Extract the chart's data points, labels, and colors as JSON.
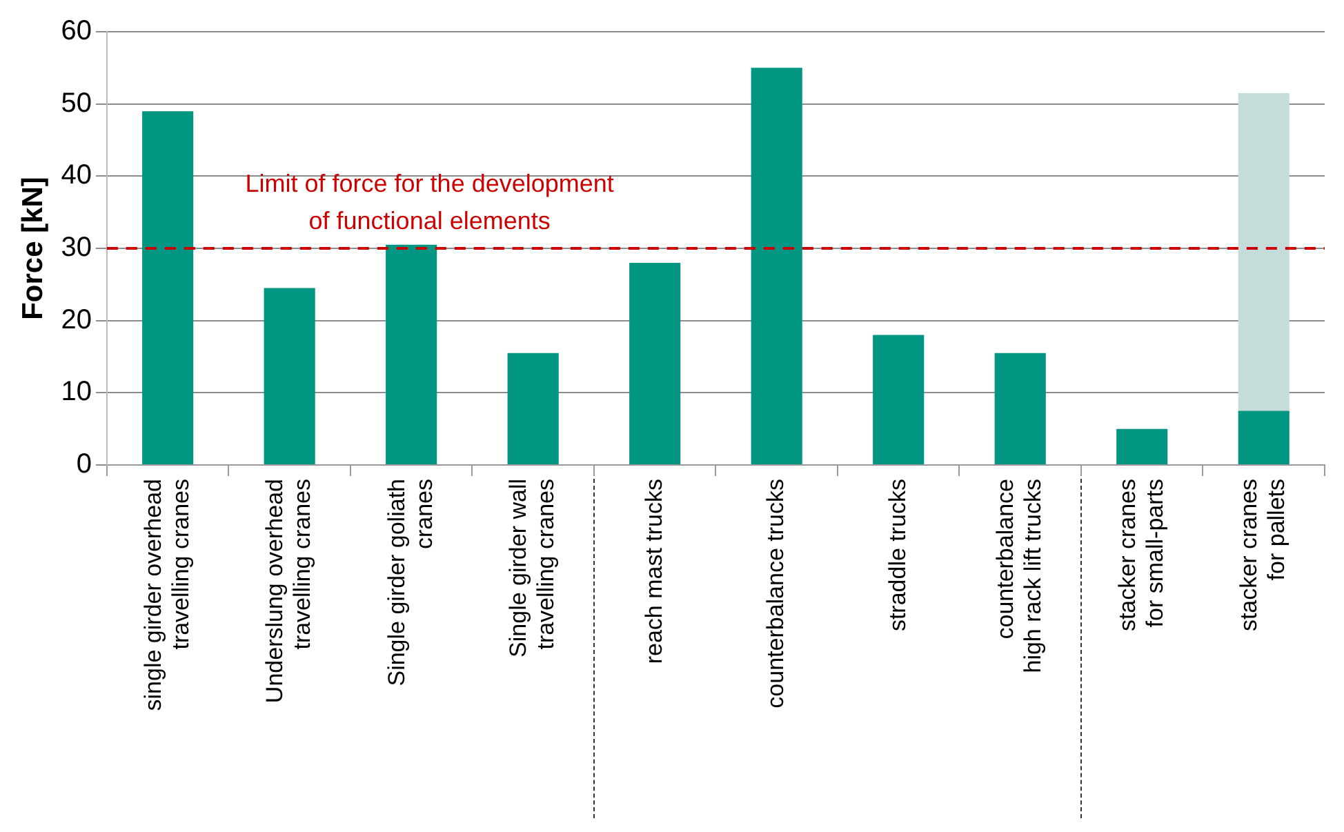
{
  "chart_data": {
    "type": "bar",
    "ylabel": "Force [kN]",
    "categories": [
      "single girder overhead\ntravelling cranes",
      "Underslung overhead\ntravelling cranes",
      "Single girder goliath\ncranes",
      "Single girder wall\ntravelling cranes",
      "reach mast trucks",
      "counterbalance trucks",
      "straddle trucks",
      "counterbalance\nhigh rack lift trucks",
      "stacker cranes\nfor small-parts",
      "stacker cranes\nfor pallets"
    ],
    "series": [
      {
        "color": "#009682",
        "values": [
          49,
          24.5,
          30.5,
          15.5,
          28,
          55,
          18,
          15.5,
          5,
          7.5
        ]
      },
      {
        "color": "#c6dcdb",
        "values": [
          null,
          null,
          null,
          null,
          null,
          null,
          null,
          null,
          null,
          44
        ]
      }
    ],
    "stacked": true,
    "ylim": [
      0,
      60
    ],
    "yticks": [
      0,
      10,
      20,
      30,
      40,
      50,
      60
    ],
    "grid": "y",
    "ref_lines": [
      {
        "axis": "y",
        "value": 30,
        "label": "Limit of force for the development\nof functional elements",
        "color": "#cc0000",
        "line_style": "dashed"
      }
    ]
  }
}
